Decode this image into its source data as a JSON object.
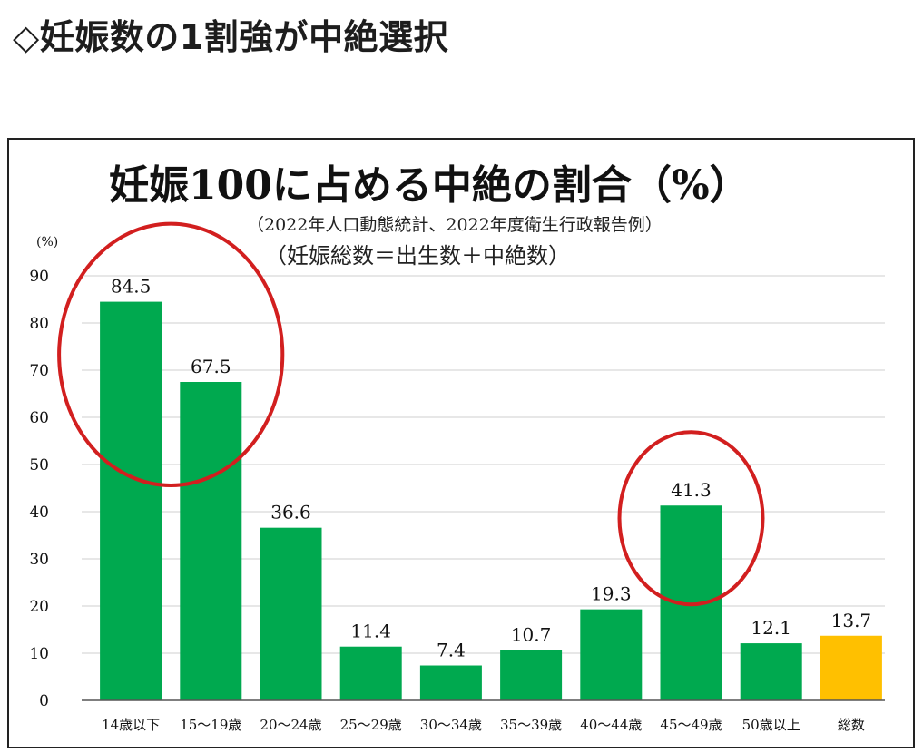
{
  "page": {
    "heading": "◇妊娠数の1割強が中絶選択"
  },
  "chart_data": {
    "type": "bar",
    "title": "妊娠100に占める中絶の割合（%）",
    "subtitle": "（2022年人口動態統計、2022年度衛生行政報告例）",
    "note": "（妊娠総数＝出生数＋中絶数）",
    "ylabel": "(%)",
    "xlabel": "",
    "ylim": [
      0,
      90
    ],
    "yticks": [
      0,
      10,
      20,
      30,
      40,
      50,
      60,
      70,
      80,
      90
    ],
    "grid": true,
    "categories": [
      "14歳以下",
      "15～19歳",
      "20～24歳",
      "25～29歳",
      "30～34歳",
      "35～39歳",
      "40～44歳",
      "45～49歳",
      "50歳以上",
      "総数"
    ],
    "values": [
      84.5,
      67.5,
      36.6,
      11.4,
      7.4,
      10.7,
      19.3,
      41.3,
      12.1,
      13.7
    ],
    "value_labels": [
      "84.5",
      "67.5",
      "36.6",
      "11.4",
      "7.4",
      "10.7",
      "19.3",
      "41.3",
      "12.1",
      "13.7"
    ],
    "highlight": [
      "総数"
    ],
    "annotations": [
      {
        "type": "circle",
        "covers": [
          "14歳以下",
          "15～19歳"
        ]
      },
      {
        "type": "circle",
        "covers": [
          "45～49歳"
        ]
      }
    ]
  },
  "colors": {
    "bar": "#00a94f",
    "highlight_bar": "#ffc000",
    "annotation_circle": "#d21f1f",
    "grid": "#cfcfcf",
    "axis": "#555555",
    "text": "#111111"
  }
}
